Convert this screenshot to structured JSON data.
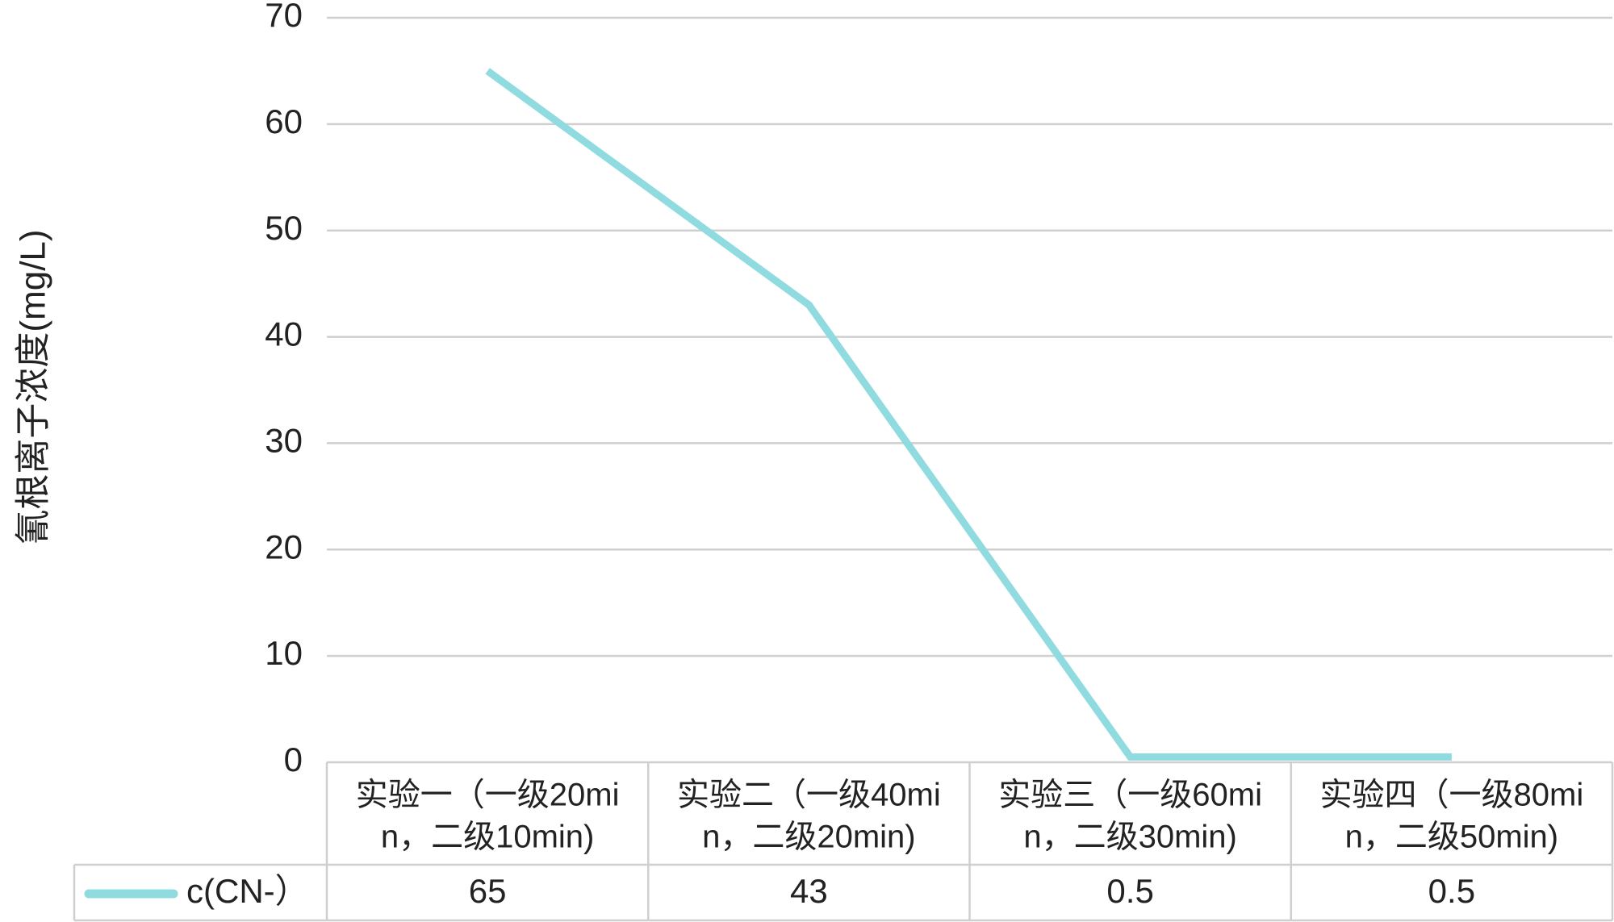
{
  "chart_data": {
    "type": "line",
    "title": "",
    "xlabel": "",
    "ylabel": "氰根离子浓度(mg/L)",
    "ylim": [
      0,
      70
    ],
    "yticks": [
      0,
      10,
      20,
      30,
      40,
      50,
      60,
      70
    ],
    "grid": true,
    "legend": "data-table-left",
    "categories": [
      [
        "实验一（一级20mi",
        "n，二级10min)"
      ],
      [
        "实验二（一级40mi",
        "n，二级20min)"
      ],
      [
        "实验三（一级60mi",
        "n，二级30min)"
      ],
      [
        "实验四（一级80mi",
        "n，二级50min)"
      ]
    ],
    "series": [
      {
        "name": "c(CN-）",
        "values": [
          65,
          43,
          0.5,
          0.5
        ],
        "color": "#8fdbe0"
      }
    ]
  }
}
